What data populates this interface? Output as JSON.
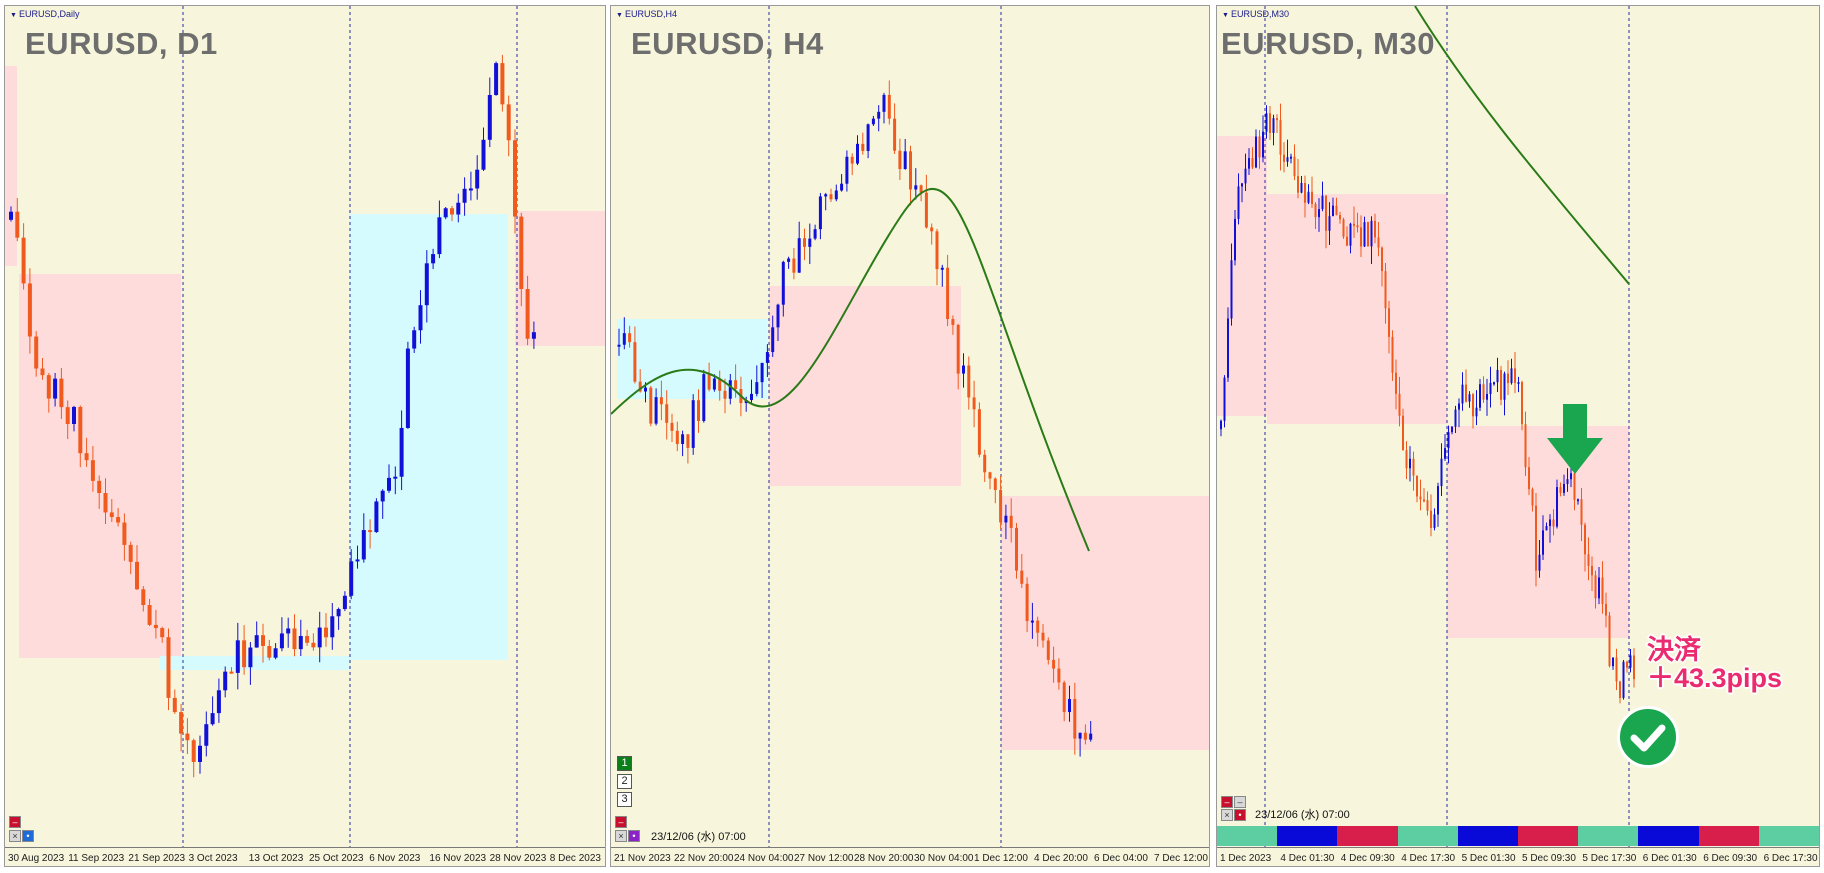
{
  "colors": {
    "bull": "#1010d8",
    "bear": "#f05a1e",
    "ma": "#2a7a18",
    "pink_zone": "#ffdcdc",
    "blue_zone": "#d6fbff",
    "bg": "#f7f6dc",
    "accent_pink": "#ea2b6f",
    "check_green": "#1aa64e"
  },
  "panels": [
    {
      "id": "d1",
      "title": "EURUSD, D1",
      "small_title": "EURUSD,Daily",
      "x_ticks": [
        "30 Aug 2023",
        "11 Sep 2023",
        "21 Sep 2023",
        "3 Oct 2023",
        "13 Oct 2023",
        "25 Oct 2023",
        "6 Nov 2023",
        "16 Nov 2023",
        "28 Nov 2023",
        "8 Dec 2023"
      ]
    },
    {
      "id": "h4",
      "title": "EURUSD, H4",
      "small_title": "EURUSD,H4",
      "x_ticks": [
        "21 Nov 2023",
        "22 Nov 20:00",
        "24 Nov 04:00",
        "27 Nov 12:00",
        "28 Nov 20:00",
        "30 Nov 04:00",
        "1 Dec 12:00",
        "4 Dec 20:00",
        "6 Dec 04:00",
        "7 Dec 12:00"
      ],
      "buttons": [
        "1",
        "2",
        "3"
      ],
      "timestamp": "23/12/06 (水) 07:00"
    },
    {
      "id": "m30",
      "title": "EURUSD, M30",
      "small_title": "EURUSD,M30",
      "x_ticks": [
        "1 Dec 2023",
        "4 Dec 01:30",
        "4 Dec 09:30",
        "4 Dec 17:30",
        "5 Dec 01:30",
        "5 Dec 09:30",
        "5 Dec 17:30",
        "6 Dec 01:30",
        "6 Dec 09:30",
        "6 Dec 17:30"
      ],
      "timestamp": "23/12/06 (水) 07:00",
      "color_bar": [
        "#5ccea2",
        "#0a0ad8",
        "#d81e4a",
        "#5ccea2",
        "#0a0ad8",
        "#d81e4a",
        "#5ccea2",
        "#0a0ad8",
        "#d81e4a",
        "#5ccea2"
      ]
    }
  ],
  "annotation": {
    "line1": "決済",
    "line2": "＋43.3pips",
    "icons": [
      "down-arrow-icon",
      "checkmark-icon"
    ]
  }
}
